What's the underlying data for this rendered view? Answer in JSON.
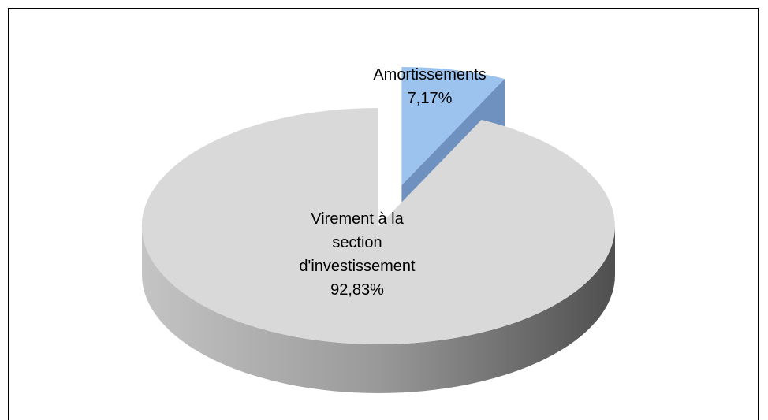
{
  "chart_data": {
    "type": "pie",
    "categories": [
      "Amortissements",
      "Virement à la section d'investissement"
    ],
    "values": [
      7.17,
      92.83
    ],
    "value_labels": [
      "7,17%",
      "92,83%"
    ],
    "colors": [
      "#9cc3ee",
      "#d9d9d9"
    ],
    "exploded": [
      true,
      false
    ]
  }
}
